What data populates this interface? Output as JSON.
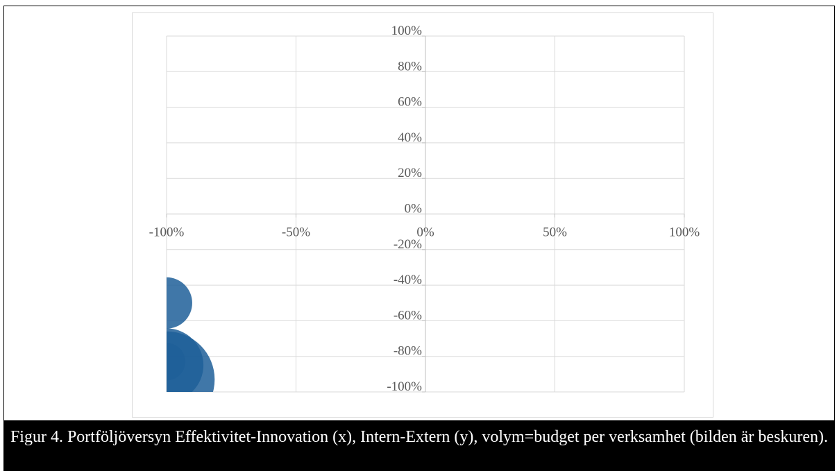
{
  "caption": "Figur 4. Portföljöversyn Effektivitet-Innovation (x), Intern-Extern (y), volym=budget per verksamhet (bilden är beskuren).",
  "chart_data": {
    "type": "bubble",
    "title": "",
    "xlabel": "",
    "ylabel": "",
    "xlim": [
      -100,
      100
    ],
    "ylim": [
      -100,
      100
    ],
    "x_ticks": [
      -100,
      -50,
      0,
      50,
      100
    ],
    "x_tick_labels": [
      "-100%",
      "-50%",
      "0%",
      "50%",
      "100%"
    ],
    "y_ticks": [
      100,
      80,
      60,
      40,
      20,
      0,
      -20,
      -40,
      -60,
      -80,
      -100
    ],
    "y_tick_labels": [
      "100%",
      "80%",
      "60%",
      "40%",
      "20%",
      "0%",
      "-20%",
      "-40%",
      "-60%",
      "-80%",
      "-100%"
    ],
    "grid": true,
    "bubble_color": "#1f5f99",
    "points": [
      {
        "x": -100,
        "y": -50,
        "volume": 4.8
      },
      {
        "x": -100,
        "y": -85,
        "volume": 6.9
      },
      {
        "x": -100,
        "y": -93,
        "volume": 9.0
      },
      {
        "x": -100,
        "y": -83,
        "volume": 3.5
      }
    ]
  }
}
